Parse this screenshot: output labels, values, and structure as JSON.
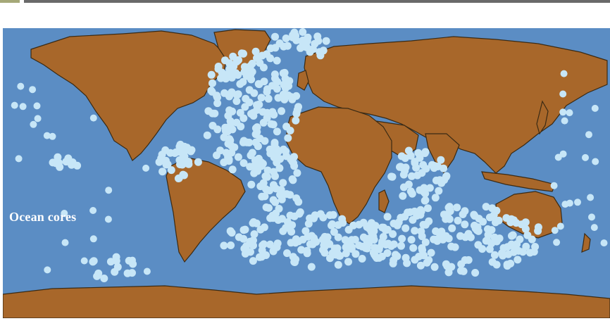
{
  "map": {
    "label": "Ocean cores",
    "colors": {
      "ocean": "#5b8dc4",
      "land": "#a8672a",
      "coastline": "#3a2a14",
      "core_marker": "#c7e6f7"
    }
  }
}
